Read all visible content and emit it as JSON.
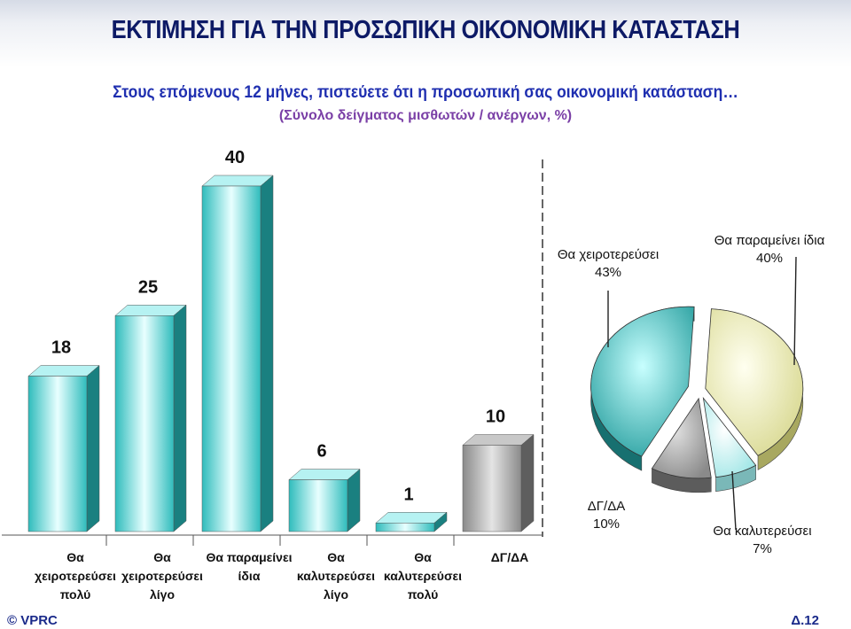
{
  "title": "ΕΚΤΙΜΗΣΗ ΓΙΑ ΤΗΝ ΠΡΟΣΩΠΙΚΗ ΟΙΚΟΝΟΜΙΚΗ ΚΑΤΑΣΤΑΣΗ",
  "subtitle": "Στους επόμενους 12 μήνες, πιστεύετε ότι η προσωπική σας οικονομική κατάσταση…",
  "note": "(Σύνολο δείγματος μισθωτών / ανέργων, %)",
  "footer": {
    "left": "© VPRC",
    "right": "Δ.12"
  },
  "chart_data": [
    {
      "type": "bar",
      "categories": [
        [
          "Θα",
          "χειροτερεύσει",
          "πολύ"
        ],
        [
          "Θα",
          "χειροτερεύσει",
          "λίγο"
        ],
        [
          "Θα παραμείνει",
          "ίδια"
        ],
        [
          "Θα",
          "καλυτερεύσει",
          "λίγο"
        ],
        [
          "Θα",
          "καλυτερεύσει",
          "πολύ"
        ],
        [
          "ΔΓ/ΔΑ"
        ]
      ],
      "values": [
        18,
        25,
        40,
        6,
        1,
        10
      ],
      "colors": [
        "#37c8c8",
        "#37c8c8",
        "#37c8c8",
        "#37c8c8",
        "#37c8c8",
        "#9a9a9a"
      ],
      "ylim": [
        0,
        40
      ]
    },
    {
      "type": "pie",
      "labels": [
        "Θα παραμείνει ίδια",
        "Θα καλυτερεύσει",
        "ΔΓ/ΔΑ",
        "Θα χειροτερεύσει"
      ],
      "values": [
        40,
        7,
        10,
        43
      ],
      "value_labels": [
        "40%",
        "7%",
        "10%",
        "43%"
      ],
      "colors": [
        "#f0f0a8",
        "#b8f4f4",
        "#a0a0a0",
        "#3ab6b6"
      ]
    }
  ]
}
